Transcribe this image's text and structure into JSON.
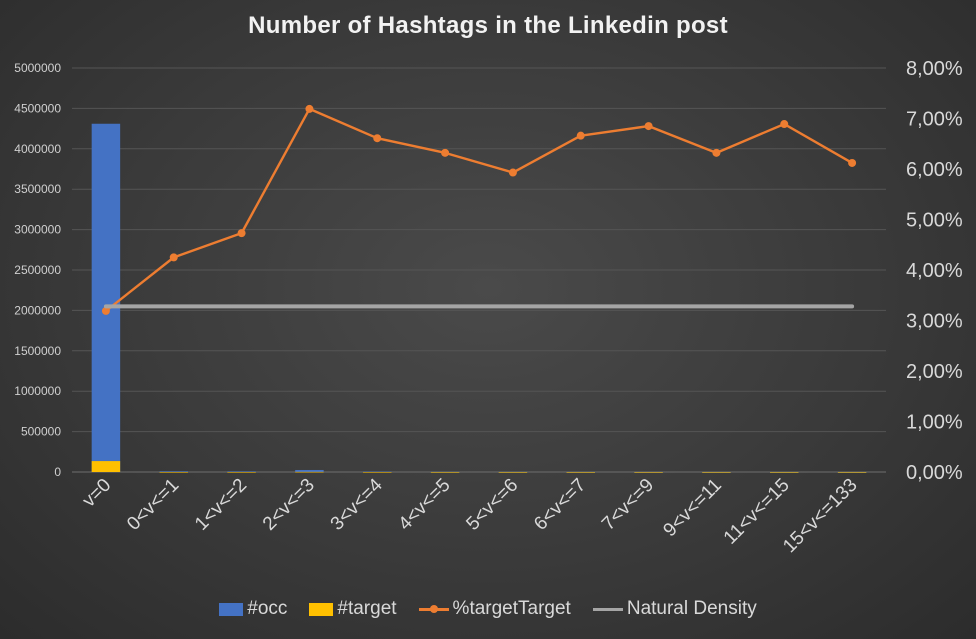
{
  "chart_data": {
    "type": "bar+line",
    "title": "Number of Hashtags in the Linkedin post",
    "categories": [
      "v=0",
      "0<v<=1",
      "1<v<=2",
      "2<v<=3",
      "3<v<=4",
      "4<v<=5",
      "5<v<=6",
      "6<v<=7",
      "7<v<=9",
      "9<v<=11",
      "11<v<=15",
      "15<v<=133"
    ],
    "ylim_left": [
      0,
      5000000
    ],
    "yticks_left": [
      "0",
      "500000",
      "1000000",
      "1500000",
      "2000000",
      "2500000",
      "3000000",
      "3500000",
      "4000000",
      "4500000",
      "5000000"
    ],
    "ylim_right": [
      0,
      0.08
    ],
    "yticks_right": [
      "0,00%",
      "1,00%",
      "2,00%",
      "3,00%",
      "4,00%",
      "5,00%",
      "6,00%",
      "7,00%",
      "8,00%"
    ],
    "grid": true,
    "legend_position": "bottom",
    "series": [
      {
        "name": "#occ",
        "type": "bar",
        "axis": "left",
        "color": "#4472c4",
        "values": [
          4310000,
          9000,
          8000,
          25000,
          6000,
          2000,
          1500,
          1200,
          900,
          600,
          500,
          300
        ]
      },
      {
        "name": "#target",
        "type": "bar",
        "axis": "left",
        "color": "#ffc000",
        "values": [
          135000,
          400,
          380,
          1800,
          400,
          130,
          90,
          80,
          60,
          40,
          35,
          18
        ]
      },
      {
        "name": "%targetTarget",
        "type": "line",
        "axis": "right",
        "color": "#ed7d31",
        "marker": true,
        "values": [
          0.0319,
          0.0425,
          0.0473,
          0.0719,
          0.0661,
          0.0632,
          0.0593,
          0.0666,
          0.0685,
          0.0632,
          0.0689,
          0.0612
        ]
      },
      {
        "name": "Natural Density",
        "type": "line",
        "axis": "right",
        "color": "#a5a5a5",
        "marker": false,
        "values": [
          0.0328,
          0.0328,
          0.0328,
          0.0328,
          0.0328,
          0.0328,
          0.0328,
          0.0328,
          0.0328,
          0.0328,
          0.0328,
          0.0328
        ]
      }
    ]
  }
}
